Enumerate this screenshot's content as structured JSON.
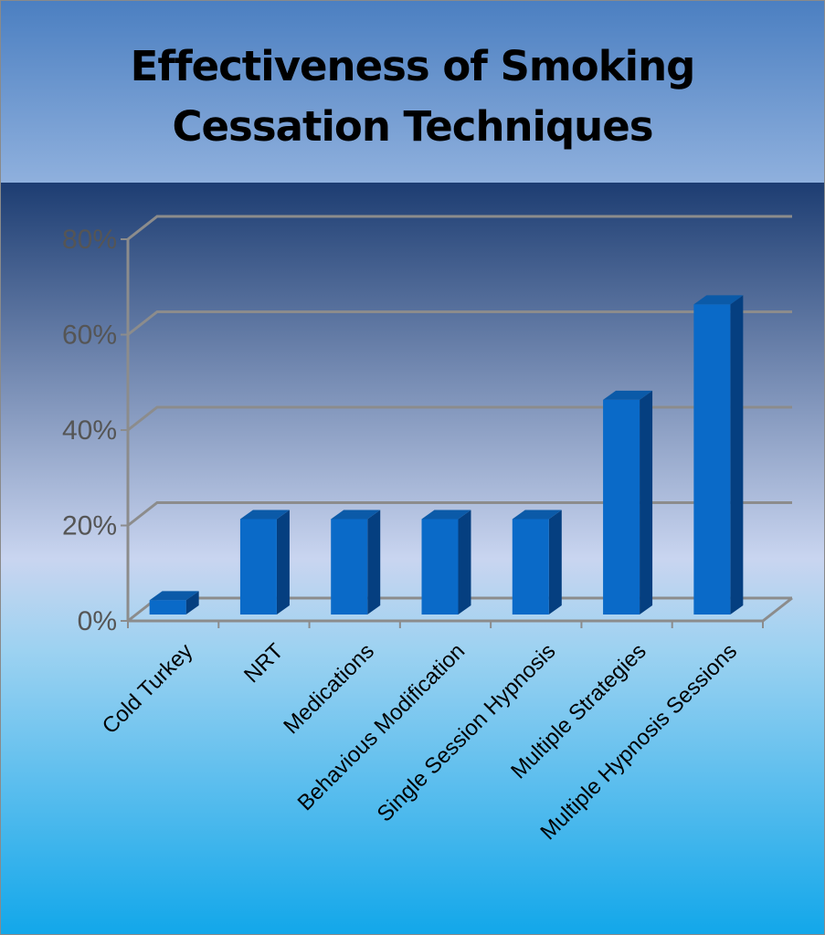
{
  "chart_data": {
    "type": "bar3d",
    "title": "Effectiveness of Smoking Cessation Techniques",
    "categories": [
      "Cold Turkey",
      "NRT",
      "Medications",
      "Behavious Modification",
      "Single Session Hypnosis",
      "Multiple Strategies",
      "Multiple Hypnosis Sessions"
    ],
    "values": [
      3,
      20,
      20,
      20,
      20,
      45,
      65
    ],
    "color": "#0a6ac8",
    "ylim": [
      0,
      80
    ],
    "yticks": [
      {
        "value": 0,
        "label": "0%"
      },
      {
        "value": 20,
        "label": "20%"
      },
      {
        "value": 40,
        "label": "40%"
      },
      {
        "value": 60,
        "label": "60%"
      },
      {
        "value": 80,
        "label": "80%"
      }
    ],
    "grid": true
  }
}
